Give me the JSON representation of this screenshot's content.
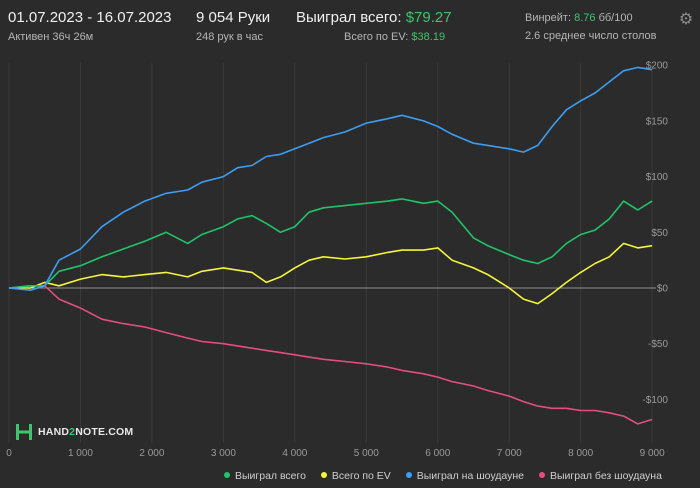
{
  "header": {
    "date_range": "01.07.2023 - 16.07.2023",
    "active_time": "Активен 36ч 26м",
    "hands_count": "9 054 Руки",
    "hands_per_hour": "248 рук в час",
    "won_total_label": "Выиграл всего:",
    "won_total_value": "$79.27",
    "ev_total_label": "Всего по EV:",
    "ev_total_value": "$38.19",
    "winrate_label": "Винрейт:",
    "winrate_value": "8.76",
    "winrate_unit": "бб/100",
    "avg_tables": "2.6 среднее число столов"
  },
  "logo": {
    "part1": "HAND",
    "part2": "2",
    "part3": "NOTE.COM"
  },
  "icons": {
    "settings": "gear-icon",
    "logo": "hand2note-logo-icon"
  },
  "colors": {
    "won_total": "#1fc46a",
    "ev": "#f5f53a",
    "showdown": "#3d9df2",
    "non_showdown": "#e34e7f"
  },
  "chart_data": {
    "type": "line",
    "xlabel": "",
    "ylabel": "",
    "xlim": [
      0,
      9054
    ],
    "ylim": [
      -135,
      205
    ],
    "x_ticks": [
      0,
      1000,
      2000,
      3000,
      4000,
      5000,
      6000,
      7000,
      8000,
      9000
    ],
    "x_tick_labels": [
      "0",
      "1 000",
      "2 000",
      "3 000",
      "4 000",
      "5 000",
      "6 000",
      "7 000",
      "8 000",
      "9 000"
    ],
    "y_ticks": [
      200,
      150,
      100,
      50,
      0,
      -50,
      -100
    ],
    "y_tick_labels": [
      "$200",
      "$150",
      "$100",
      "$50",
      "$0",
      "-$50",
      "-$100"
    ],
    "grid": "vertical",
    "legend_position": "bottom-right",
    "series": [
      {
        "name": "Выиграл всего",
        "color_key": "won_total",
        "x": [
          0,
          300,
          500,
          700,
          1000,
          1300,
          1600,
          1900,
          2200,
          2500,
          2700,
          3000,
          3200,
          3400,
          3600,
          3800,
          4000,
          4200,
          4400,
          4700,
          5000,
          5300,
          5500,
          5800,
          6000,
          6200,
          6500,
          6700,
          7000,
          7200,
          7400,
          7600,
          7800,
          8000,
          8200,
          8400,
          8600,
          8800,
          9000
        ],
        "y": [
          0,
          2,
          2,
          15,
          20,
          28,
          35,
          42,
          50,
          40,
          48,
          55,
          62,
          65,
          58,
          50,
          55,
          68,
          72,
          74,
          76,
          78,
          80,
          76,
          78,
          68,
          45,
          38,
          30,
          25,
          22,
          28,
          40,
          48,
          52,
          62,
          78,
          70,
          78
        ]
      },
      {
        "name": "Всего по EV",
        "color_key": "ev",
        "x": [
          0,
          300,
          500,
          700,
          1000,
          1300,
          1600,
          1900,
          2200,
          2500,
          2700,
          3000,
          3200,
          3400,
          3600,
          3800,
          4000,
          4200,
          4400,
          4700,
          5000,
          5300,
          5500,
          5800,
          6000,
          6200,
          6500,
          6700,
          7000,
          7200,
          7400,
          7600,
          7800,
          8000,
          8200,
          8400,
          8600,
          8800,
          9000
        ],
        "y": [
          0,
          0,
          5,
          2,
          8,
          12,
          10,
          12,
          14,
          10,
          15,
          18,
          16,
          14,
          5,
          10,
          18,
          25,
          28,
          26,
          28,
          32,
          34,
          34,
          36,
          25,
          18,
          12,
          0,
          -10,
          -14,
          -5,
          5,
          14,
          22,
          28,
          40,
          36,
          38
        ]
      },
      {
        "name": "Выиграл на шоудауне",
        "color_key": "showdown",
        "x": [
          0,
          300,
          500,
          700,
          1000,
          1300,
          1600,
          1900,
          2200,
          2500,
          2700,
          3000,
          3200,
          3400,
          3600,
          3800,
          4000,
          4200,
          4400,
          4700,
          5000,
          5300,
          5500,
          5800,
          6000,
          6200,
          6500,
          6700,
          7000,
          7200,
          7400,
          7600,
          7800,
          8000,
          8200,
          8400,
          8600,
          8800,
          9000
        ],
        "y": [
          0,
          -2,
          2,
          25,
          35,
          55,
          68,
          78,
          85,
          88,
          95,
          100,
          108,
          110,
          118,
          120,
          125,
          130,
          135,
          140,
          148,
          152,
          155,
          150,
          145,
          138,
          130,
          128,
          125,
          122,
          128,
          145,
          160,
          168,
          175,
          185,
          195,
          198,
          196
        ]
      },
      {
        "name": "Выиграл без шоудауна",
        "color_key": "non_showdown",
        "x": [
          0,
          300,
          500,
          700,
          1000,
          1300,
          1600,
          1900,
          2200,
          2500,
          2700,
          3000,
          3200,
          3400,
          3600,
          3800,
          4000,
          4200,
          4400,
          4700,
          5000,
          5300,
          5500,
          5800,
          6000,
          6200,
          6500,
          6700,
          7000,
          7200,
          7400,
          7600,
          7800,
          8000,
          8200,
          8400,
          8600,
          8800,
          9000
        ],
        "y": [
          0,
          2,
          2,
          -10,
          -18,
          -28,
          -32,
          -35,
          -40,
          -45,
          -48,
          -50,
          -52,
          -54,
          -56,
          -58,
          -60,
          -62,
          -64,
          -66,
          -68,
          -71,
          -74,
          -77,
          -80,
          -84,
          -88,
          -92,
          -97,
          -102,
          -106,
          -108,
          -108,
          -110,
          -110,
          -112,
          -115,
          -122,
          -118
        ]
      }
    ]
  }
}
